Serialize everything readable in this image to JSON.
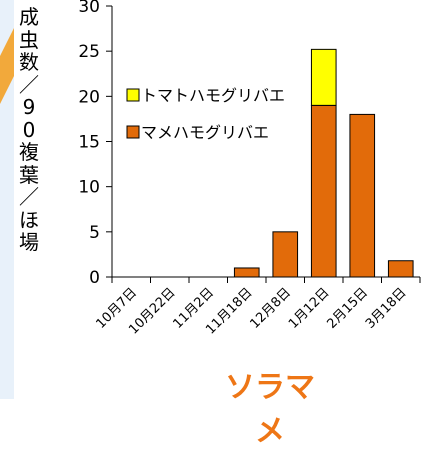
{
  "chart_data": {
    "type": "bar",
    "stacked": true,
    "ylabel": "成虫数／90複葉／ほ場",
    "xlabel": "",
    "title": "ソラマメ",
    "categories": [
      "10月7日",
      "10月22日",
      "11月2日",
      "11月18日",
      "12月8日",
      "1月12日",
      "2月15日",
      "3月18日"
    ],
    "ylim": [
      0,
      30
    ],
    "yticks": [
      0,
      5,
      10,
      15,
      20,
      25,
      30
    ],
    "grid": false,
    "legend_position": "upper-left",
    "series": [
      {
        "name": "マメハモグリバエ",
        "color": "#e26b0a",
        "values": [
          0,
          0,
          0,
          1,
          5,
          19,
          18,
          1.8
        ]
      },
      {
        "name": "トマトハモグリバエ",
        "color": "#ffff00",
        "values": [
          0,
          0,
          0,
          0,
          0,
          6.2,
          0,
          0
        ]
      }
    ]
  },
  "colors": {
    "accent": "#f2a93b",
    "title": "#ee7616"
  }
}
